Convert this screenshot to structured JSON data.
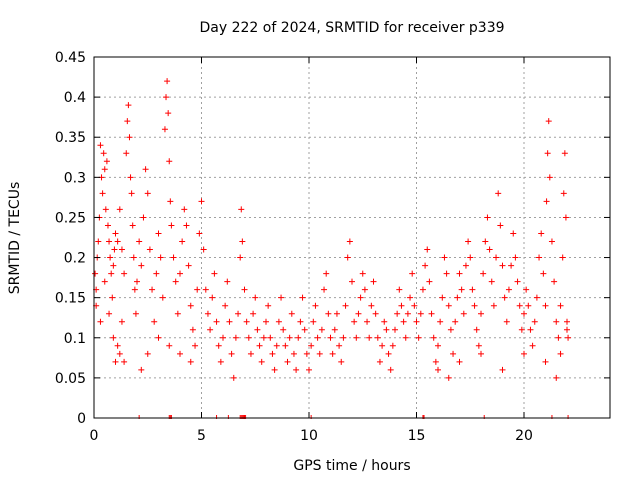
{
  "chart_data": {
    "type": "scatter",
    "title": "Day 222 of 2024, SRMTID for receiver p339",
    "xlabel": "GPS time / hours",
    "ylabel": "SRMTID / TECUs",
    "xlim": [
      0,
      24
    ],
    "ylim": [
      0,
      0.45
    ],
    "x_ticks": [
      0,
      5,
      10,
      15,
      20
    ],
    "y_ticks": [
      0,
      0.05,
      0.1,
      0.15,
      0.2,
      0.25,
      0.3,
      0.35,
      0.4,
      0.45
    ],
    "x_tick_labels": [
      "0",
      "5",
      "10",
      "15",
      "20"
    ],
    "y_tick_labels": [
      "0",
      "0.05",
      "0.1",
      "0.15",
      "0.2",
      "0.25",
      "0.3",
      "0.35",
      "0.4",
      "0.45"
    ],
    "grid": true,
    "marker": "plus",
    "color": "#ff0000",
    "note": "Points are estimated from the figure (dense scatter of SRMTID samples).",
    "series": [
      {
        "name": "SRMTID",
        "points": [
          [
            0.05,
            0.18
          ],
          [
            0.1,
            0.16
          ],
          [
            0.15,
            0.2
          ],
          [
            0.2,
            0.22
          ],
          [
            0.25,
            0.25
          ],
          [
            0.3,
            0.34
          ],
          [
            0.35,
            0.3
          ],
          [
            0.4,
            0.28
          ],
          [
            0.45,
            0.33
          ],
          [
            0.5,
            0.31
          ],
          [
            0.55,
            0.26
          ],
          [
            0.6,
            0.32
          ],
          [
            0.65,
            0.24
          ],
          [
            0.7,
            0.22
          ],
          [
            0.75,
            0.2
          ],
          [
            0.8,
            0.18
          ],
          [
            0.85,
            0.15
          ],
          [
            0.9,
            0.19
          ],
          [
            0.95,
            0.21
          ],
          [
            1.0,
            0.23
          ],
          [
            0.1,
            0.14
          ],
          [
            0.3,
            0.12
          ],
          [
            0.5,
            0.17
          ],
          [
            0.7,
            0.13
          ],
          [
            0.9,
            0.1
          ],
          [
            1.1,
            0.22
          ],
          [
            1.2,
            0.26
          ],
          [
            1.3,
            0.21
          ],
          [
            1.4,
            0.18
          ],
          [
            1.5,
            0.33
          ],
          [
            1.55,
            0.37
          ],
          [
            1.6,
            0.39
          ],
          [
            1.65,
            0.35
          ],
          [
            1.7,
            0.3
          ],
          [
            1.75,
            0.28
          ],
          [
            1.8,
            0.24
          ],
          [
            1.85,
            0.2
          ],
          [
            1.9,
            0.16
          ],
          [
            1.95,
            0.13
          ],
          [
            2.0,
            0.17
          ],
          [
            1.0,
            0.07
          ],
          [
            1.1,
            0.09
          ],
          [
            1.2,
            0.08
          ],
          [
            1.3,
            0.12
          ],
          [
            1.4,
            0.07
          ],
          [
            2.1,
            0.22
          ],
          [
            2.2,
            0.19
          ],
          [
            2.3,
            0.25
          ],
          [
            2.4,
            0.31
          ],
          [
            2.5,
            0.28
          ],
          [
            2.6,
            0.21
          ],
          [
            2.7,
            0.16
          ],
          [
            2.8,
            0.12
          ],
          [
            2.9,
            0.18
          ],
          [
            3.0,
            0.23
          ],
          [
            3.1,
            0.2
          ],
          [
            3.2,
            0.15
          ],
          [
            3.3,
            0.36
          ],
          [
            3.35,
            0.4
          ],
          [
            3.4,
            0.42
          ],
          [
            3.45,
            0.38
          ],
          [
            3.5,
            0.32
          ],
          [
            3.55,
            0.27
          ],
          [
            3.6,
            0.24
          ],
          [
            3.7,
            0.2
          ],
          [
            3.8,
            0.17
          ],
          [
            3.9,
            0.13
          ],
          [
            4.0,
            0.18
          ],
          [
            4.1,
            0.22
          ],
          [
            4.2,
            0.26
          ],
          [
            4.3,
            0.24
          ],
          [
            4.4,
            0.19
          ],
          [
            4.5,
            0.14
          ],
          [
            4.6,
            0.11
          ],
          [
            4.7,
            0.09
          ],
          [
            4.8,
            0.16
          ],
          [
            4.9,
            0.23
          ],
          [
            5.0,
            0.27
          ],
          [
            5.1,
            0.21
          ],
          [
            5.2,
            0.16
          ],
          [
            2.2,
            0.06
          ],
          [
            2.5,
            0.08
          ],
          [
            3.0,
            0.1
          ],
          [
            3.5,
            0.09
          ],
          [
            4.0,
            0.08
          ],
          [
            4.5,
            0.07
          ],
          [
            5.3,
            0.13
          ],
          [
            5.4,
            0.11
          ],
          [
            5.5,
            0.15
          ],
          [
            5.6,
            0.18
          ],
          [
            5.7,
            0.12
          ],
          [
            5.8,
            0.09
          ],
          [
            5.9,
            0.07
          ],
          [
            6.0,
            0.1
          ],
          [
            6.1,
            0.14
          ],
          [
            6.2,
            0.17
          ],
          [
            6.3,
            0.12
          ],
          [
            6.4,
            0.08
          ],
          [
            6.5,
            0.05
          ],
          [
            6.6,
            0.1
          ],
          [
            6.7,
            0.13
          ],
          [
            6.8,
            0.2
          ],
          [
            6.85,
            0.26
          ],
          [
            6.9,
            0.22
          ],
          [
            7.0,
            0.16
          ],
          [
            7.1,
            0.12
          ],
          [
            7.2,
            0.1
          ],
          [
            7.3,
            0.08
          ],
          [
            7.4,
            0.13
          ],
          [
            7.5,
            0.15
          ],
          [
            7.6,
            0.11
          ],
          [
            7.7,
            0.09
          ],
          [
            7.8,
            0.07
          ],
          [
            7.9,
            0.1
          ],
          [
            8.0,
            0.12
          ],
          [
            8.1,
            0.14
          ],
          [
            8.2,
            0.1
          ],
          [
            8.3,
            0.08
          ],
          [
            8.4,
            0.06
          ],
          [
            8.5,
            0.09
          ],
          [
            8.6,
            0.12
          ],
          [
            8.7,
            0.15
          ],
          [
            8.8,
            0.11
          ],
          [
            8.9,
            0.09
          ],
          [
            9.0,
            0.07
          ],
          [
            9.1,
            0.1
          ],
          [
            9.2,
            0.13
          ],
          [
            9.3,
            0.08
          ],
          [
            9.4,
            0.06
          ],
          [
            9.5,
            0.1
          ],
          [
            9.6,
            0.12
          ],
          [
            9.7,
            0.15
          ],
          [
            9.8,
            0.11
          ],
          [
            9.9,
            0.08
          ],
          [
            10.0,
            0.06
          ],
          [
            10.1,
            0.09
          ],
          [
            10.2,
            0.12
          ],
          [
            10.3,
            0.14
          ],
          [
            10.4,
            0.1
          ],
          [
            10.5,
            0.08
          ],
          [
            10.6,
            0.11
          ],
          [
            10.7,
            0.16
          ],
          [
            10.8,
            0.18
          ],
          [
            10.9,
            0.13
          ],
          [
            11.0,
            0.1
          ],
          [
            11.1,
            0.08
          ],
          [
            11.2,
            0.11
          ],
          [
            11.3,
            0.13
          ],
          [
            11.4,
            0.09
          ],
          [
            11.5,
            0.07
          ],
          [
            11.6,
            0.1
          ],
          [
            11.7,
            0.14
          ],
          [
            11.8,
            0.2
          ],
          [
            11.9,
            0.22
          ],
          [
            12.0,
            0.17
          ],
          [
            12.1,
            0.12
          ],
          [
            12.2,
            0.1
          ],
          [
            12.3,
            0.13
          ],
          [
            12.4,
            0.15
          ],
          [
            12.5,
            0.18
          ],
          [
            12.6,
            0.16
          ],
          [
            12.7,
            0.12
          ],
          [
            12.8,
            0.1
          ],
          [
            12.9,
            0.14
          ],
          [
            13.0,
            0.17
          ],
          [
            13.1,
            0.13
          ],
          [
            13.2,
            0.1
          ],
          [
            13.3,
            0.07
          ],
          [
            13.4,
            0.09
          ],
          [
            13.5,
            0.12
          ],
          [
            13.6,
            0.11
          ],
          [
            13.7,
            0.08
          ],
          [
            13.8,
            0.06
          ],
          [
            13.9,
            0.09
          ],
          [
            14.0,
            0.11
          ],
          [
            14.1,
            0.13
          ],
          [
            14.2,
            0.16
          ],
          [
            14.3,
            0.14
          ],
          [
            14.4,
            0.12
          ],
          [
            14.5,
            0.1
          ],
          [
            14.6,
            0.13
          ],
          [
            14.7,
            0.15
          ],
          [
            14.8,
            0.18
          ],
          [
            14.9,
            0.14
          ],
          [
            15.0,
            0.12
          ],
          [
            15.1,
            0.1
          ],
          [
            15.2,
            0.13
          ],
          [
            15.3,
            0.16
          ],
          [
            15.4,
            0.19
          ],
          [
            15.5,
            0.21
          ],
          [
            15.6,
            0.17
          ],
          [
            15.7,
            0.13
          ],
          [
            15.8,
            0.1
          ],
          [
            15.9,
            0.07
          ],
          [
            16.0,
            0.09
          ],
          [
            16.1,
            0.12
          ],
          [
            16.2,
            0.15
          ],
          [
            16.3,
            0.2
          ],
          [
            16.4,
            0.18
          ],
          [
            16.5,
            0.14
          ],
          [
            16.6,
            0.11
          ],
          [
            16.7,
            0.08
          ],
          [
            16.8,
            0.12
          ],
          [
            16.9,
            0.15
          ],
          [
            17.0,
            0.18
          ],
          [
            17.1,
            0.16
          ],
          [
            17.2,
            0.13
          ],
          [
            17.3,
            0.19
          ],
          [
            17.4,
            0.22
          ],
          [
            17.5,
            0.2
          ],
          [
            17.6,
            0.16
          ],
          [
            17.7,
            0.14
          ],
          [
            17.8,
            0.11
          ],
          [
            17.9,
            0.09
          ],
          [
            18.0,
            0.13
          ],
          [
            18.1,
            0.18
          ],
          [
            18.2,
            0.22
          ],
          [
            18.3,
            0.25
          ],
          [
            18.4,
            0.21
          ],
          [
            18.5,
            0.17
          ],
          [
            18.6,
            0.14
          ],
          [
            18.7,
            0.2
          ],
          [
            18.8,
            0.28
          ],
          [
            18.9,
            0.24
          ],
          [
            19.0,
            0.19
          ],
          [
            19.1,
            0.15
          ],
          [
            19.2,
            0.12
          ],
          [
            19.3,
            0.16
          ],
          [
            19.4,
            0.19
          ],
          [
            19.5,
            0.23
          ],
          [
            19.6,
            0.2
          ],
          [
            19.7,
            0.17
          ],
          [
            19.8,
            0.14
          ],
          [
            19.9,
            0.11
          ],
          [
            20.0,
            0.13
          ],
          [
            20.1,
            0.16
          ],
          [
            20.2,
            0.14
          ],
          [
            20.3,
            0.11
          ],
          [
            20.4,
            0.09
          ],
          [
            20.5,
            0.12
          ],
          [
            20.6,
            0.15
          ],
          [
            20.7,
            0.2
          ],
          [
            20.8,
            0.23
          ],
          [
            20.9,
            0.18
          ],
          [
            21.0,
            0.14
          ],
          [
            21.05,
            0.27
          ],
          [
            21.1,
            0.33
          ],
          [
            21.15,
            0.37
          ],
          [
            21.2,
            0.3
          ],
          [
            21.3,
            0.22
          ],
          [
            21.4,
            0.17
          ],
          [
            21.5,
            0.12
          ],
          [
            21.6,
            0.1
          ],
          [
            21.7,
            0.14
          ],
          [
            21.8,
            0.2
          ],
          [
            21.85,
            0.28
          ],
          [
            21.9,
            0.33
          ],
          [
            21.95,
            0.25
          ],
          [
            22.0,
            0.11
          ],
          [
            22.05,
            0.1
          ],
          [
            16.0,
            0.06
          ],
          [
            16.5,
            0.05
          ],
          [
            17.0,
            0.07
          ],
          [
            18.0,
            0.08
          ],
          [
            19.0,
            0.06
          ],
          [
            20.0,
            0.08
          ],
          [
            21.0,
            0.07
          ],
          [
            21.5,
            0.05
          ],
          [
            22.0,
            0.12
          ],
          [
            21.7,
            0.08
          ]
        ]
      }
    ],
    "zero_markers_x": [
      2.1,
      3.5,
      3.55,
      3.6,
      5.7,
      6.25,
      6.8,
      6.85,
      6.9,
      6.95,
      7.0,
      7.05,
      10.1,
      15.3,
      15.35,
      18.15,
      21.3,
      22.05
    ]
  }
}
